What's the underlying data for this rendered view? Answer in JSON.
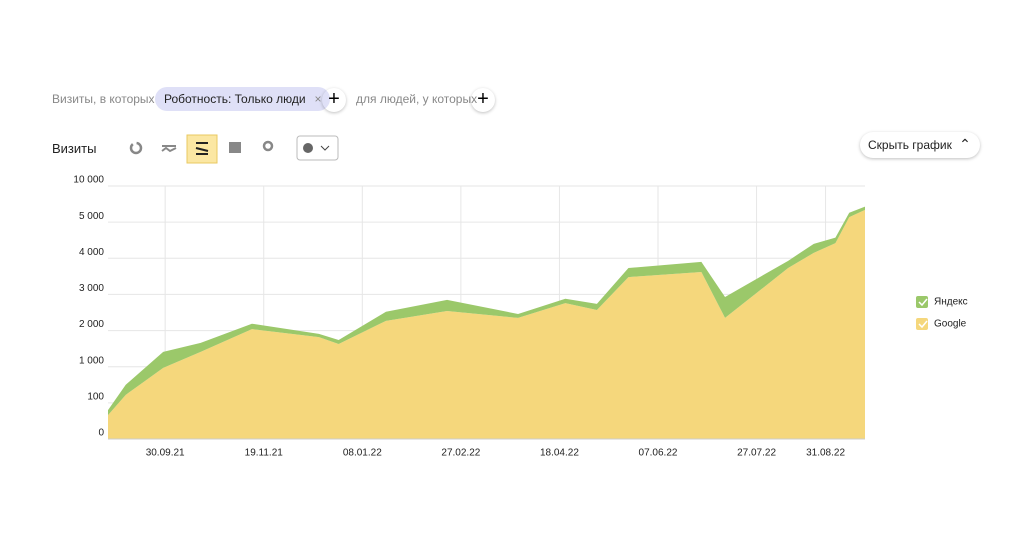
{
  "ui": {
    "filter_prefix": "Визиты, в которых",
    "filter_chip": "Роботность: Только люди",
    "filter_suffix": "для людей, у которых",
    "metric_title": "Визиты",
    "hide_chart_button": "Скрыть график"
  },
  "chart_data": {
    "type": "stacked-area",
    "x": [
      "01.09.21",
      "10.09.21",
      "29.09.21",
      "18.10.21",
      "13.11.21",
      "17.12.21",
      "27.12.21",
      "20.01.22",
      "20.02.22",
      "28.03.22",
      "21.04.22",
      "07.05.22",
      "23.05.22",
      "29.06.22",
      "11.07.22",
      "12.08.22",
      "25.08.22",
      "05.09.22",
      "12.09.22",
      "20.09.22"
    ],
    "series": [
      {
        "name": "Яндекс",
        "color": "#9bc86a",
        "values": [
          14,
          250,
          440,
          250,
          150,
          90,
          110,
          250,
          310,
          110,
          120,
          170,
          250,
          280,
          580,
          200,
          250,
          150,
          600,
          450
        ]
      },
      {
        "name": "Google",
        "color": "#f5d77c",
        "values": [
          66,
          300,
          970,
          1410,
          2040,
          1820,
          1630,
          2270,
          2540,
          2350,
          2760,
          2570,
          3480,
          3620,
          2350,
          3730,
          4150,
          4420,
          5700,
          6700
        ]
      }
    ],
    "xlim": [
      "01.09.21",
      "20.09.22"
    ],
    "xticks": [
      "30.09.21",
      "19.11.21",
      "08.01.22",
      "27.02.22",
      "18.04.22",
      "07.06.22",
      "27.07.22",
      "31.08.22"
    ],
    "ylim": [
      0,
      10000
    ],
    "yticks": [
      0,
      100,
      {
        "value": 1000,
        "label": "1 000"
      },
      {
        "value": 2000,
        "label": "2 000"
      },
      {
        "value": 3000,
        "label": "3 000"
      },
      {
        "value": 4000,
        "label": "4 000"
      },
      {
        "value": 5000,
        "label": "5 000"
      },
      {
        "value": 10000,
        "label": "10 000"
      }
    ],
    "grid": true,
    "legend": "right"
  }
}
